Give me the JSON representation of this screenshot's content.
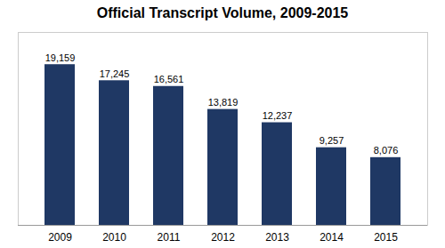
{
  "chart_data": {
    "type": "bar",
    "title": "Official Transcript Volume, 2009-2015",
    "categories": [
      "2009",
      "2010",
      "2011",
      "2012",
      "2013",
      "2014",
      "2015"
    ],
    "values": [
      19159,
      17245,
      16561,
      13819,
      12237,
      9257,
      8076
    ],
    "value_labels": [
      "19,159",
      "17,245",
      "16,561",
      "13,819",
      "12,237",
      "9,257",
      "8,076"
    ],
    "data_labels": true,
    "color": "#1F3864",
    "ylim": [
      0,
      23000
    ],
    "grid": false,
    "tick_labels": "x"
  }
}
